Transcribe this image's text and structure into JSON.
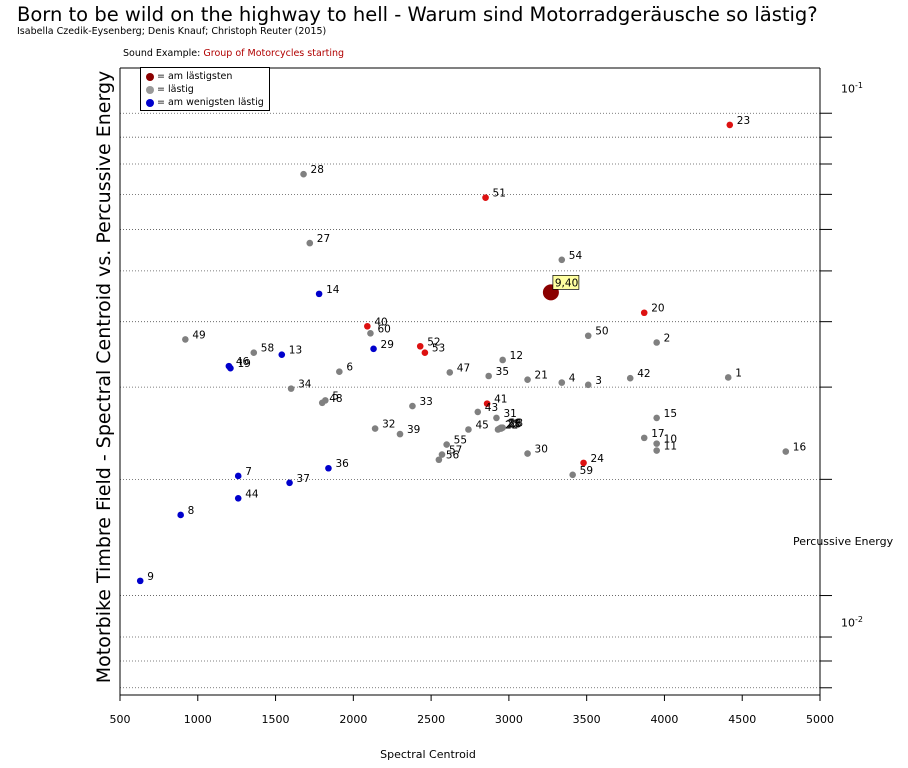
{
  "header": {
    "title": "Born to be wild on the highway to hell - Warum sind Motorradgeräusche so lästig?",
    "authors": "Isabella Czedik-Eysenberg; Denis Knauf; Christoph Reuter (2015)",
    "sound_label": "Sound Example:",
    "sound_link": "Group of Motorcycles starting"
  },
  "legend": {
    "items": [
      {
        "label": "= am lästigsten",
        "color": "#8b0000"
      },
      {
        "label": "= lästig",
        "color": "#999999"
      },
      {
        "label": "= am wenigsten lästig",
        "color": "#0000cc"
      }
    ]
  },
  "colors": {
    "red": "#dd1111",
    "gray": "#808080",
    "blue": "#0000cc",
    "highlight": "#8b0000",
    "highlight_label_bg": "#ffffa0"
  },
  "chart_data": {
    "type": "scatter",
    "title": "",
    "xlabel": "Spectral Centroid",
    "ylabel": "Motorbike Timbre Field - Spectral Centroid vs. Percussive Energy",
    "y2label": "Percussive Energy",
    "y_exponent_labels": [
      {
        "base": "10",
        "exp": "-1"
      },
      {
        "base": "10",
        "exp": "-2"
      }
    ],
    "xlim": [
      500,
      5000
    ],
    "ylim": [
      0.00775,
      0.122
    ],
    "y_scale": "log",
    "x_ticks": [
      500,
      1000,
      1500,
      2000,
      2500,
      3000,
      3500,
      4000,
      4500,
      5000
    ],
    "y_ticks": [
      0.008,
      0.009,
      0.01,
      0.012,
      0.02,
      0.03,
      0.04,
      0.05,
      0.06,
      0.07,
      0.08,
      0.09,
      0.1
    ],
    "grid": true,
    "legend_position": "top-left",
    "highlight": {
      "label": "9,40",
      "x": 3270,
      "y": 0.0455
    },
    "points": [
      {
        "label": "1",
        "x": 4410,
        "y": 0.0313,
        "cat": "gray"
      },
      {
        "label": "2",
        "x": 3950,
        "y": 0.0365,
        "cat": "gray"
      },
      {
        "label": "3",
        "x": 3510,
        "y": 0.0303,
        "cat": "gray"
      },
      {
        "label": "4",
        "x": 3340,
        "y": 0.0306,
        "cat": "gray"
      },
      {
        "label": "5",
        "x": 1820,
        "y": 0.0283,
        "cat": "gray"
      },
      {
        "label": "6",
        "x": 1910,
        "y": 0.0321,
        "cat": "gray"
      },
      {
        "label": "7",
        "x": 1260,
        "y": 0.0203,
        "cat": "blue"
      },
      {
        "label": "8",
        "x": 890,
        "y": 0.0171,
        "cat": "blue"
      },
      {
        "label": "9",
        "x": 630,
        "y": 0.0128,
        "cat": "blue"
      },
      {
        "label": "10",
        "x": 3950,
        "y": 0.0234,
        "cat": "gray"
      },
      {
        "label": "11",
        "x": 3950,
        "y": 0.0227,
        "cat": "gray"
      },
      {
        "label": "12",
        "x": 2960,
        "y": 0.0338,
        "cat": "gray"
      },
      {
        "label": "13",
        "x": 1540,
        "y": 0.0346,
        "cat": "blue"
      },
      {
        "label": "14",
        "x": 1780,
        "y": 0.0452,
        "cat": "blue"
      },
      {
        "label": "15",
        "x": 3950,
        "y": 0.0262,
        "cat": "gray"
      },
      {
        "label": "16",
        "x": 4780,
        "y": 0.0226,
        "cat": "gray"
      },
      {
        "label": "17",
        "x": 3870,
        "y": 0.024,
        "cat": "gray"
      },
      {
        "label": "18",
        "x": 2960,
        "y": 0.0251,
        "cat": "gray"
      },
      {
        "label": "19",
        "x": 1210,
        "y": 0.0326,
        "cat": "blue"
      },
      {
        "label": "20",
        "x": 3870,
        "y": 0.0416,
        "cat": "red"
      },
      {
        "label": "21",
        "x": 3120,
        "y": 0.031,
        "cat": "gray"
      },
      {
        "label": "22",
        "x": 2930,
        "y": 0.0249,
        "cat": "gray"
      },
      {
        "label": "23",
        "x": 4420,
        "y": 0.095,
        "cat": "red"
      },
      {
        "label": "24",
        "x": 3480,
        "y": 0.0215,
        "cat": "red"
      },
      {
        "label": "25",
        "x": 2940,
        "y": 0.025,
        "cat": "gray"
      },
      {
        "label": "26",
        "x": 2950,
        "y": 0.025,
        "cat": "gray"
      },
      {
        "label": "27",
        "x": 1720,
        "y": 0.0565,
        "cat": "gray"
      },
      {
        "label": "28",
        "x": 1680,
        "y": 0.0765,
        "cat": "gray"
      },
      {
        "label": "29",
        "x": 2130,
        "y": 0.0355,
        "cat": "blue"
      },
      {
        "label": "30",
        "x": 3120,
        "y": 0.0224,
        "cat": "gray"
      },
      {
        "label": "31",
        "x": 2920,
        "y": 0.0262,
        "cat": "gray"
      },
      {
        "label": "32",
        "x": 2140,
        "y": 0.025,
        "cat": "gray"
      },
      {
        "label": "33",
        "x": 2380,
        "y": 0.0276,
        "cat": "gray"
      },
      {
        "label": "34",
        "x": 1600,
        "y": 0.0298,
        "cat": "gray"
      },
      {
        "label": "35",
        "x": 2870,
        "y": 0.0315,
        "cat": "gray"
      },
      {
        "label": "36",
        "x": 1840,
        "y": 0.021,
        "cat": "blue"
      },
      {
        "label": "37",
        "x": 1590,
        "y": 0.0197,
        "cat": "blue"
      },
      {
        "label": "38",
        "x": 2950,
        "y": 0.0251,
        "cat": "gray"
      },
      {
        "label": "39",
        "x": 2300,
        "y": 0.0244,
        "cat": "gray"
      },
      {
        "label": "40",
        "x": 2090,
        "y": 0.0392,
        "cat": "red"
      },
      {
        "label": "41",
        "x": 2860,
        "y": 0.0279,
        "cat": "red"
      },
      {
        "label": "42",
        "x": 3780,
        "y": 0.0312,
        "cat": "gray"
      },
      {
        "label": "43",
        "x": 2800,
        "y": 0.0269,
        "cat": "gray"
      },
      {
        "label": "44",
        "x": 1260,
        "y": 0.0184,
        "cat": "blue"
      },
      {
        "label": "45",
        "x": 2740,
        "y": 0.0249,
        "cat": "gray"
      },
      {
        "label": "46",
        "x": 1200,
        "y": 0.0329,
        "cat": "blue"
      },
      {
        "label": "47",
        "x": 2620,
        "y": 0.032,
        "cat": "gray"
      },
      {
        "label": "48",
        "x": 1800,
        "y": 0.028,
        "cat": "gray"
      },
      {
        "label": "49",
        "x": 920,
        "y": 0.037,
        "cat": "gray"
      },
      {
        "label": "50",
        "x": 3510,
        "y": 0.0376,
        "cat": "gray"
      },
      {
        "label": "51",
        "x": 2850,
        "y": 0.069,
        "cat": "red"
      },
      {
        "label": "52",
        "x": 2430,
        "y": 0.0359,
        "cat": "red"
      },
      {
        "label": "53",
        "x": 2460,
        "y": 0.0349,
        "cat": "red"
      },
      {
        "label": "54",
        "x": 3340,
        "y": 0.0525,
        "cat": "gray"
      },
      {
        "label": "55",
        "x": 2600,
        "y": 0.0233,
        "cat": "gray"
      },
      {
        "label": "56",
        "x": 2550,
        "y": 0.0218,
        "cat": "gray"
      },
      {
        "label": "57",
        "x": 2570,
        "y": 0.0223,
        "cat": "gray"
      },
      {
        "label": "58",
        "x": 1360,
        "y": 0.0349,
        "cat": "gray"
      },
      {
        "label": "59",
        "x": 3410,
        "y": 0.0204,
        "cat": "gray"
      },
      {
        "label": "60",
        "x": 2110,
        "y": 0.038,
        "cat": "gray"
      }
    ]
  }
}
